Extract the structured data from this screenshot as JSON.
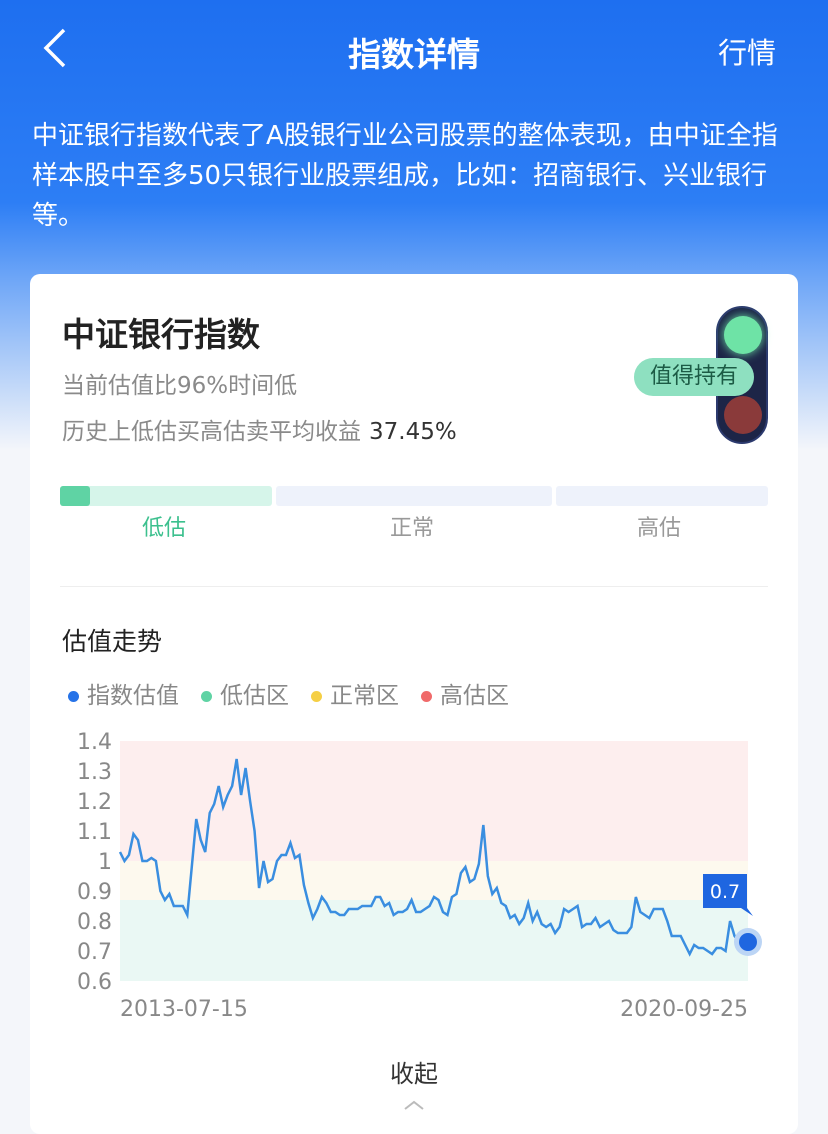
{
  "header": {
    "title": "指数详情",
    "right_link": "行情",
    "back_icon": "chevron-left-icon"
  },
  "description": "中证银行指数代表了A股银行业公司股票的整体表现，由中证全指样本股中至多50只银行业股票组成，比如：招商银行、兴业银行等。",
  "card": {
    "index_name": "中证银行指数",
    "valuation_text": "当前估值比96%时间低",
    "return_label": "历史上低估买高估卖平均收益",
    "return_value": "37.45%",
    "badge": "值得持有",
    "valuation_bar": {
      "levels": [
        "低估",
        "正常",
        "高估"
      ],
      "active": "低估",
      "fill_fraction_of_low": 0.14,
      "colors": {
        "active": "#5fd3a4",
        "low_bg": "#d6f5ea",
        "other_bg": "#eef2fb"
      }
    },
    "section_title": "估值走势",
    "legend": [
      {
        "label": "指数估值",
        "color": "#2673e8"
      },
      {
        "label": "低估区",
        "color": "#5fd3a4"
      },
      {
        "label": "正常区",
        "color": "#f5cf45"
      },
      {
        "label": "高估区",
        "color": "#f06a6a"
      }
    ],
    "collapse_label": "收起"
  },
  "chart_data": {
    "type": "line",
    "x_tick_labels": [
      "2013-07-15",
      "2020-09-25"
    ],
    "y_ticks": [
      "1.4",
      "1.3",
      "1.2",
      "1.1",
      "1",
      "0.9",
      "0.8",
      "0.7",
      "0.6"
    ],
    "ylim": [
      0.6,
      1.4
    ],
    "zones": [
      {
        "name": "低估区",
        "range": [
          0.6,
          0.87
        ],
        "color": "#eaf8f4"
      },
      {
        "name": "正常区",
        "range": [
          0.87,
          1.0
        ],
        "color": "#fdf9ee"
      },
      {
        "name": "高估区",
        "range": [
          1.0,
          1.4
        ],
        "color": "#fdeeee"
      }
    ],
    "series": [
      {
        "name": "指数估值",
        "color": "#3a8ee0",
        "values": [
          1.03,
          1.0,
          1.02,
          1.09,
          1.07,
          1.0,
          1.0,
          1.01,
          1.0,
          0.9,
          0.87,
          0.89,
          0.85,
          0.85,
          0.85,
          0.82,
          0.98,
          1.14,
          1.07,
          1.03,
          1.16,
          1.19,
          1.25,
          1.18,
          1.22,
          1.25,
          1.34,
          1.22,
          1.31,
          1.2,
          1.1,
          0.91,
          1.0,
          0.93,
          0.94,
          1.0,
          1.02,
          1.02,
          1.06,
          1.01,
          1.02,
          0.92,
          0.86,
          0.81,
          0.84,
          0.88,
          0.86,
          0.83,
          0.83,
          0.82,
          0.82,
          0.84,
          0.84,
          0.84,
          0.85,
          0.85,
          0.85,
          0.88,
          0.88,
          0.85,
          0.86,
          0.82,
          0.83,
          0.83,
          0.84,
          0.87,
          0.83,
          0.83,
          0.84,
          0.85,
          0.88,
          0.87,
          0.83,
          0.82,
          0.88,
          0.89,
          0.96,
          0.98,
          0.93,
          0.94,
          0.99,
          1.12,
          0.95,
          0.89,
          0.91,
          0.86,
          0.85,
          0.81,
          0.82,
          0.79,
          0.81,
          0.86,
          0.8,
          0.83,
          0.79,
          0.78,
          0.79,
          0.76,
          0.78,
          0.84,
          0.83,
          0.84,
          0.85,
          0.78,
          0.79,
          0.79,
          0.81,
          0.78,
          0.79,
          0.8,
          0.77,
          0.76,
          0.76,
          0.76,
          0.78,
          0.88,
          0.83,
          0.82,
          0.81,
          0.84,
          0.84,
          0.84,
          0.8,
          0.75,
          0.75,
          0.75,
          0.72,
          0.69,
          0.72,
          0.71,
          0.71,
          0.7,
          0.69,
          0.71,
          0.71,
          0.7,
          0.8,
          0.75,
          0.73,
          0.73,
          0.73
        ]
      }
    ],
    "tooltip": "0.7"
  }
}
